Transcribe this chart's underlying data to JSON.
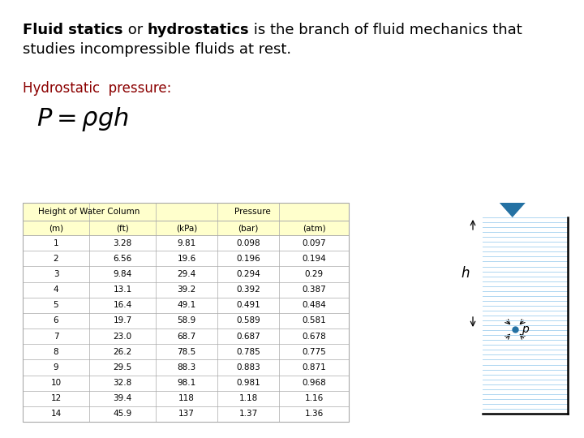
{
  "bg_color": "#ffffff",
  "table_header_bg": "#ffffcc",
  "table_border": "#aaaaaa",
  "water_line_color": "#aed6f1",
  "triangle_color": "#2471a3",
  "point_color": "#2471a3",
  "col_subheaders": [
    "(m)",
    "(ft)",
    "(kPa)",
    "(bar)",
    "(atm)"
  ],
  "rows": [
    [
      1,
      3.28,
      9.81,
      0.098,
      0.097
    ],
    [
      2,
      6.56,
      19.6,
      0.196,
      0.194
    ],
    [
      3,
      9.84,
      29.4,
      0.294,
      0.29
    ],
    [
      4,
      13.1,
      39.2,
      0.392,
      0.387
    ],
    [
      5,
      16.4,
      49.1,
      0.491,
      0.484
    ],
    [
      6,
      19.7,
      58.9,
      0.589,
      0.581
    ],
    [
      7,
      23.0,
      68.7,
      0.687,
      0.678
    ],
    [
      8,
      26.2,
      78.5,
      0.785,
      0.775
    ],
    [
      9,
      29.5,
      88.3,
      0.883,
      0.871
    ],
    [
      10,
      32.8,
      98.1,
      0.981,
      0.968
    ],
    [
      12,
      39.4,
      118,
      1.18,
      1.16
    ],
    [
      14,
      45.9,
      137,
      1.37,
      1.36
    ]
  ]
}
